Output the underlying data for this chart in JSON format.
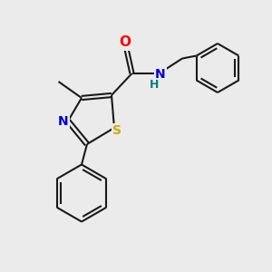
{
  "bg_color": "#ebebeb",
  "bond_color": "#1a1a1a",
  "bond_width": 1.5,
  "atom_colors": {
    "O": "#ff0000",
    "N_ring": "#0000cc",
    "N_amide": "#0000cc",
    "S": "#ccaa00",
    "H": "#008080"
  },
  "dbo": 0.09
}
